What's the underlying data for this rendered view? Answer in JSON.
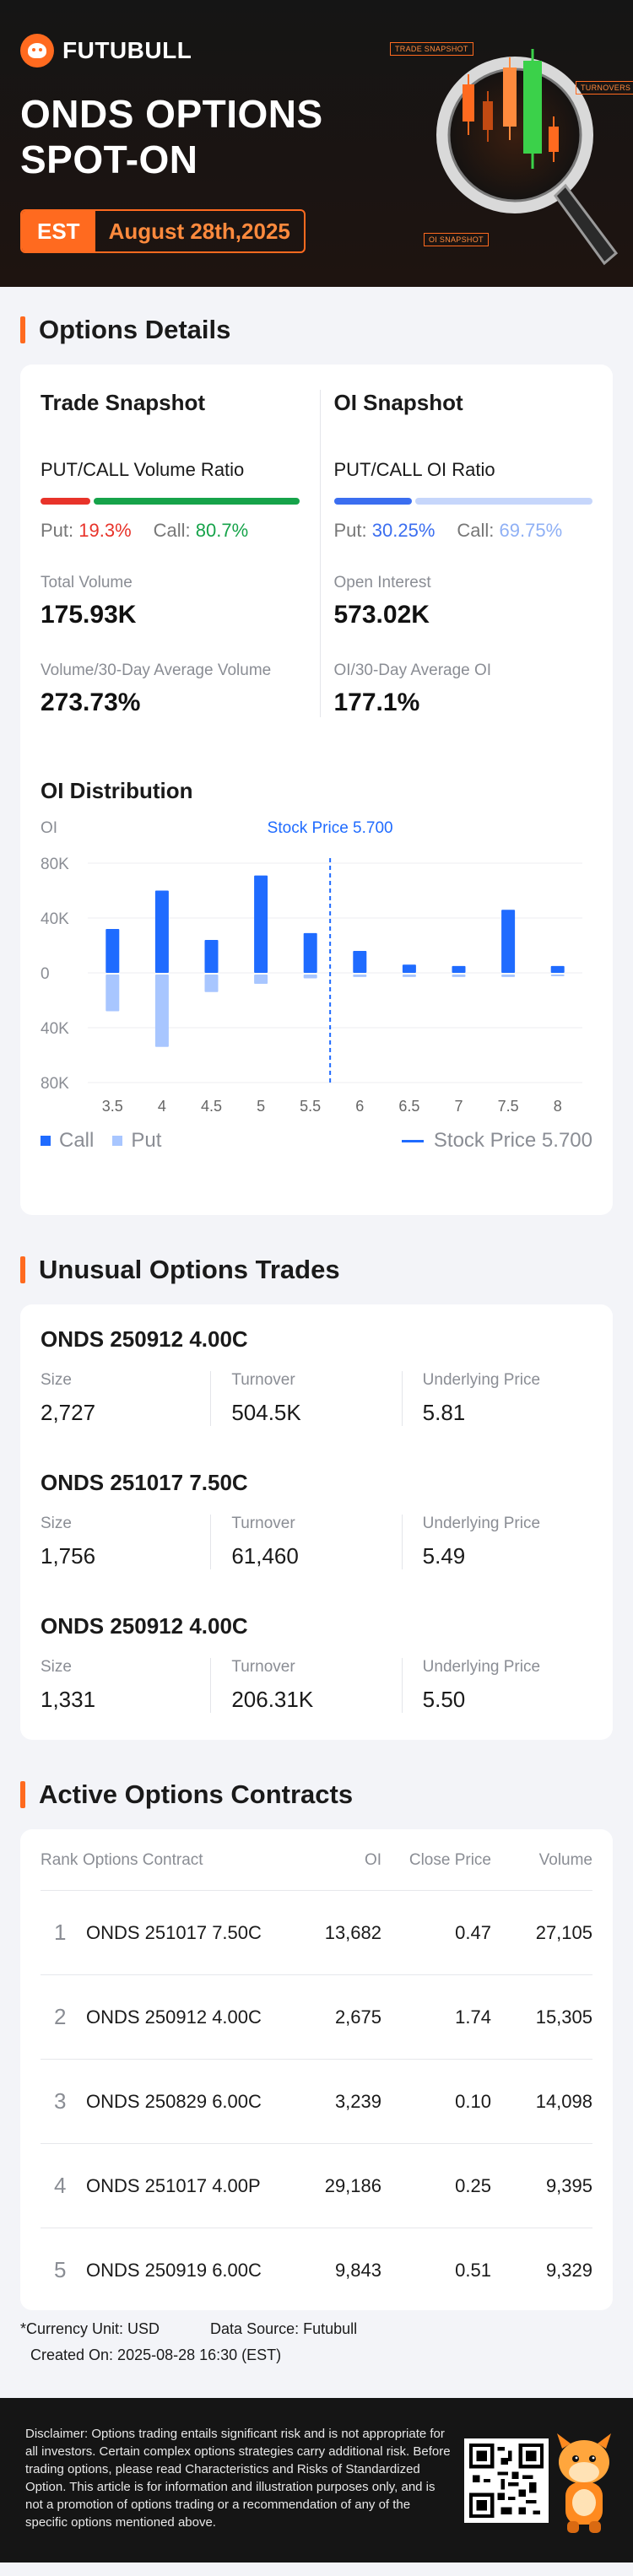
{
  "brand": {
    "name": "FUTUBULL"
  },
  "hero": {
    "title_line1": "ONDS OPTIONS",
    "title_line2": "SPOT-ON",
    "timezone": "EST",
    "date": "August 28th,2025",
    "tags": [
      "TRADE SNAPSHOT",
      "TURNOVERS",
      "OI SNAPSHOT"
    ]
  },
  "options_details": {
    "heading": "Options Details",
    "trade": {
      "title": "Trade Snapshot",
      "ratio_label": "PUT/CALL Volume Ratio",
      "put_label": "Put:",
      "put_value": "19.3%",
      "call_label": "Call:",
      "call_value": "80.7%",
      "put_fraction": 0.193,
      "total_volume_label": "Total Volume",
      "total_volume": "175.93K",
      "avg_label": "Volume/30-Day Average Volume",
      "avg_value": "273.73%"
    },
    "oi": {
      "title": "OI Snapshot",
      "ratio_label": "PUT/CALL OI Ratio",
      "put_label": "Put:",
      "put_value": "30.25%",
      "call_label": "Call:",
      "call_value": "69.75%",
      "put_fraction": 0.3025,
      "open_interest_label": "Open Interest",
      "open_interest": "573.02K",
      "avg_label": "OI/30-Day Average OI",
      "avg_value": "177.1%"
    },
    "distribution_title": "OI Distribution",
    "legend": {
      "call": "Call",
      "put": "Put",
      "stock_price": "Stock Price 5.700"
    }
  },
  "chart_data": {
    "type": "bar",
    "title": "OI Distribution",
    "ylabel": "OI",
    "categories": [
      "3.5",
      "4",
      "4.5",
      "5",
      "5.5",
      "6",
      "6.5",
      "7",
      "7.5",
      "8"
    ],
    "y_ticks": [
      "80K",
      "40K",
      "0",
      "40K",
      "80K"
    ],
    "ylim": [
      -80000,
      80000
    ],
    "series": [
      {
        "name": "Call",
        "color": "#1f6bff",
        "values": [
          32000,
          60000,
          24000,
          71000,
          29000,
          16000,
          6000,
          5000,
          46000,
          5000
        ]
      },
      {
        "name": "Put",
        "color": "#a8c6ff",
        "values": [
          28000,
          54000,
          14000,
          8000,
          4000,
          3000,
          3000,
          3000,
          3000,
          2000
        ]
      }
    ],
    "stock_price": {
      "label": "Stock Price 5.700",
      "value": 5.7
    },
    "legend": "bottom"
  },
  "unusual": {
    "heading": "Unusual Options Trades",
    "labels": {
      "size": "Size",
      "turnover": "Turnover",
      "underlying": "Underlying Price"
    },
    "trades": [
      {
        "name": "ONDS 250912 4.00C",
        "size": "2,727",
        "turnover": "504.5K",
        "underlying": "5.81"
      },
      {
        "name": "ONDS 251017 7.50C",
        "size": "1,756",
        "turnover": "61,460",
        "underlying": "5.49"
      },
      {
        "name": "ONDS 250912 4.00C",
        "size": "1,331",
        "turnover": "206.31K",
        "underlying": "5.50"
      }
    ]
  },
  "active": {
    "heading": "Active Options Contracts",
    "columns": {
      "rank": "Rank",
      "contract": "Options Contract",
      "oi": "OI",
      "close": "Close Price",
      "volume": "Volume"
    },
    "rows": [
      {
        "rank": "1",
        "contract": "ONDS 251017 7.50C",
        "oi": "13,682",
        "close": "0.47",
        "volume": "27,105"
      },
      {
        "rank": "2",
        "contract": "ONDS 250912 4.00C",
        "oi": "2,675",
        "close": "1.74",
        "volume": "15,305"
      },
      {
        "rank": "3",
        "contract": "ONDS 250829 6.00C",
        "oi": "3,239",
        "close": "0.10",
        "volume": "14,098"
      },
      {
        "rank": "4",
        "contract": "ONDS 251017 4.00P",
        "oi": "29,186",
        "close": "0.25",
        "volume": "9,395"
      },
      {
        "rank": "5",
        "contract": "ONDS 250919 6.00C",
        "oi": "9,843",
        "close": "0.51",
        "volume": "9,329"
      }
    ]
  },
  "footer": {
    "currency": "*Currency Unit: USD",
    "source": "Data Source: Futubull",
    "created": "Created On: 2025-08-28 16:30 (EST)",
    "disclaimer": "Disclaimer: Options trading entails significant risk and is not appropriate for all investors. Certain complex options strategies carry additional risk. Before trading options, please read Characteristics and Risks of Standardized Option. This article is for information and illustration purposes only, and is not a promotion of options trading or a recommendation of any of the specific options mentioned above."
  },
  "colors": {
    "accent": "#ff6a1f",
    "call_blue": "#1f6bff",
    "put_light": "#a8c6ff",
    "put_red": "#e8332a",
    "call_green": "#16a34a"
  }
}
